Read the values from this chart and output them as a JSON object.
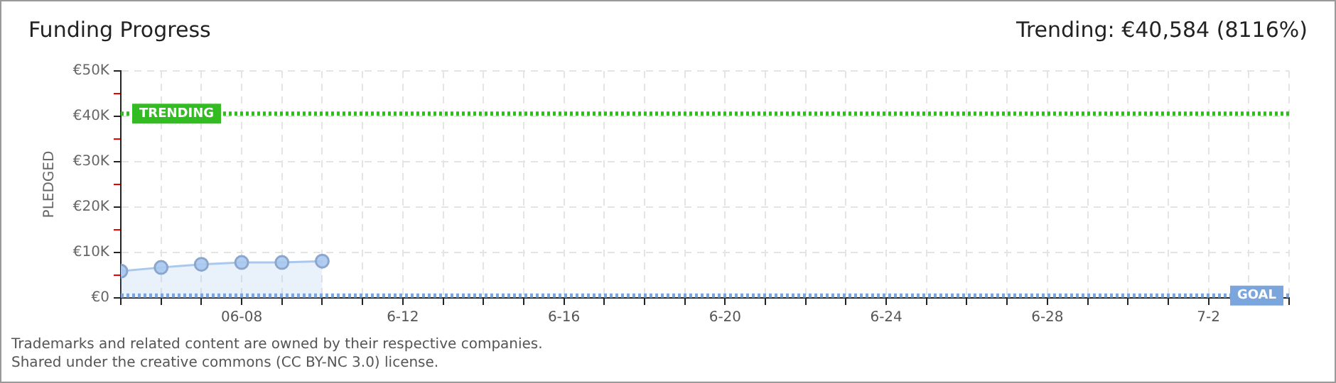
{
  "chart_data": {
    "type": "area",
    "title": "Funding Progress",
    "subtitle": "Trending: €40,584 (8116%)",
    "ylabel": "PLEDGED",
    "x": [
      "--06-05",
      "--06-06",
      "--06-07",
      "--06-08",
      "--06-09",
      "--06-10"
    ],
    "series": [
      {
        "color": "#a9c8ee",
        "values": [
          5900,
          6700,
          7400,
          7800,
          7800,
          8100
        ]
      }
    ],
    "xlim": [
      "--06-05",
      "--07-04"
    ],
    "xticks": [
      {
        "value": "--06-05",
        "label": null
      },
      {
        "value": "--06-06",
        "label": null
      },
      {
        "value": "--06-07",
        "label": null
      },
      {
        "value": "--06-08",
        "label": "06-08"
      },
      {
        "value": "--06-09",
        "label": null
      },
      {
        "value": "--06-10",
        "label": null
      },
      {
        "value": "--06-11",
        "label": null
      },
      {
        "value": "--06-12",
        "label": "6-12"
      },
      {
        "value": "--06-13",
        "label": null
      },
      {
        "value": "--06-14",
        "label": null
      },
      {
        "value": "--06-15",
        "label": null
      },
      {
        "value": "--06-16",
        "label": "6-16"
      },
      {
        "value": "--06-17",
        "label": null
      },
      {
        "value": "--06-18",
        "label": null
      },
      {
        "value": "--06-19",
        "label": null
      },
      {
        "value": "--06-20",
        "label": "6-20"
      },
      {
        "value": "--06-21",
        "label": null
      },
      {
        "value": "--06-22",
        "label": null
      },
      {
        "value": "--06-23",
        "label": null
      },
      {
        "value": "--06-24",
        "label": "6-24"
      },
      {
        "value": "--06-25",
        "label": null
      },
      {
        "value": "--06-26",
        "label": null
      },
      {
        "value": "--06-27",
        "label": null
      },
      {
        "value": "--06-28",
        "label": "6-28"
      },
      {
        "value": "--06-29",
        "label": null
      },
      {
        "value": "--06-30",
        "label": null
      },
      {
        "value": "--07-01",
        "label": null
      },
      {
        "value": "--07-02",
        "label": "7-2"
      },
      {
        "value": "--07-03",
        "label": null
      },
      {
        "value": "--07-04",
        "label": null
      }
    ],
    "ylim": [
      0,
      50000
    ],
    "yticks": [
      {
        "value": 0,
        "label": "€0"
      },
      {
        "value": 5000,
        "label": null
      },
      {
        "value": 10000,
        "label": "€10K"
      },
      {
        "value": 15000,
        "label": null
      },
      {
        "value": 20000,
        "label": "€20K"
      },
      {
        "value": 25000,
        "label": null
      },
      {
        "value": 30000,
        "label": "€30K"
      },
      {
        "value": 35000,
        "label": null
      },
      {
        "value": 40000,
        "label": "€40K"
      },
      {
        "value": 45000,
        "label": null
      },
      {
        "value": 50000,
        "label": "€50K"
      }
    ],
    "ref_lines": [
      {
        "axis": "y",
        "value": 40584,
        "label": "TRENDING",
        "color": "#33bb22",
        "line_style": "dotted"
      },
      {
        "axis": "y",
        "value": 500,
        "label": "GOAL",
        "color": "#7aa6dd",
        "line_style": "dotted"
      }
    ],
    "grid": true,
    "legend": false,
    "marker": "circle",
    "line_style": "solid",
    "annotations": [
      "Trademarks and related content are owned by their respective companies.",
      "Shared under the creative commons (CC BY-NC 3.0) license."
    ]
  }
}
